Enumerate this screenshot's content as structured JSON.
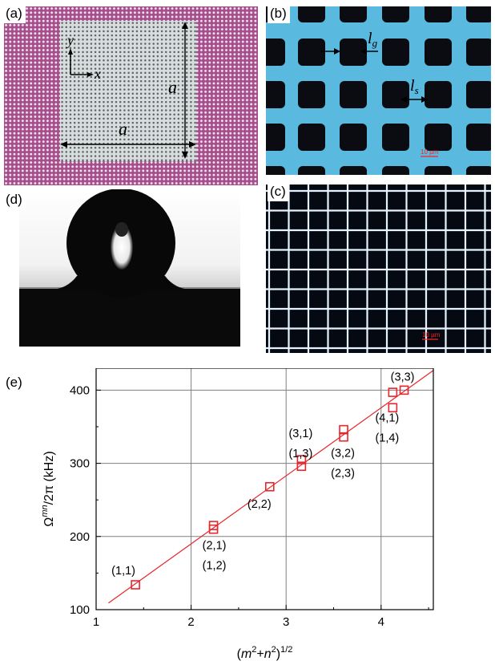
{
  "panels": {
    "a": {
      "label": "(a)",
      "axis_y": "y",
      "axis_x": "x",
      "dim_vertical": "a",
      "dim_horizontal": "a"
    },
    "b": {
      "label": "(b)",
      "gap_label": "l",
      "gap_sub": "g",
      "size_label": "l",
      "size_sub": "s",
      "scale_text": "10 µm"
    },
    "c": {
      "label": "(c)",
      "scale_text": "10 µm"
    },
    "d": {
      "label": "(d)"
    },
    "e": {
      "label": "(e)"
    }
  },
  "chart_data": {
    "type": "scatter",
    "xlabel": "(m²+n²)^1/2",
    "ylabel": "Ωmn/2π (kHz)",
    "xlim": [
      1,
      4.55
    ],
    "ylim": [
      100,
      430
    ],
    "x_ticks": [
      "1",
      "2",
      "3",
      "4"
    ],
    "y_ticks": [
      "100",
      "200",
      "300",
      "400"
    ],
    "grid": true,
    "colors": {
      "points": "#e8262b",
      "fit": "#e8262b",
      "grid": "#808080"
    },
    "points": [
      {
        "x": 1.414,
        "y": 134,
        "labels": [
          "(1,1)"
        ]
      },
      {
        "x": 2.236,
        "y": 210,
        "labels": [
          "(2,1)",
          "(1,2)"
        ]
      },
      {
        "x": 2.236,
        "y": 215,
        "labels": []
      },
      {
        "x": 2.828,
        "y": 268,
        "labels": [
          "(2,2)"
        ]
      },
      {
        "x": 3.162,
        "y": 296,
        "labels": [
          "(3,1)",
          "(1,3)"
        ]
      },
      {
        "x": 3.162,
        "y": 305,
        "labels": []
      },
      {
        "x": 3.606,
        "y": 336,
        "labels": [
          "(3,2)",
          "(2,3)"
        ]
      },
      {
        "x": 3.606,
        "y": 346,
        "labels": []
      },
      {
        "x": 4.123,
        "y": 376,
        "labels": [
          "(4,1)",
          "(1,4)"
        ]
      },
      {
        "x": 4.123,
        "y": 397,
        "labels": []
      },
      {
        "x": 4.243,
        "y": 400,
        "labels": [
          "(3,3)"
        ]
      }
    ],
    "fit_line": {
      "x": [
        1.13,
        4.55
      ],
      "y": [
        109,
        427
      ]
    }
  }
}
